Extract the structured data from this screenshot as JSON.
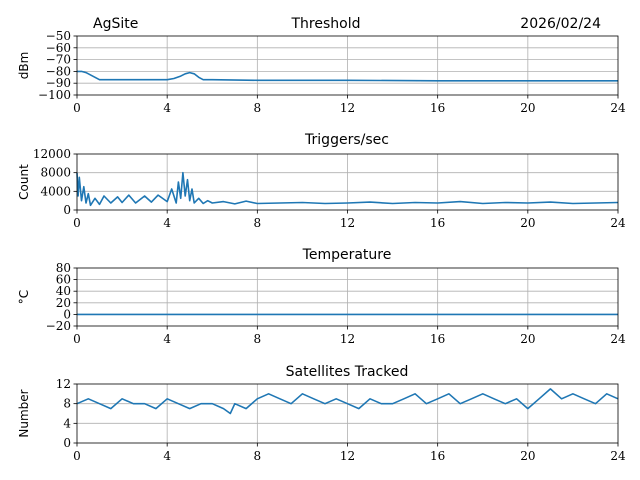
{
  "header": {
    "site": "AgSite",
    "date": "2026/02/24"
  },
  "colors": {
    "series": "#1f77b4",
    "grid": "#b0b0b0",
    "axis": "#000000"
  },
  "chart_data": [
    {
      "type": "line",
      "title": "Threshold",
      "xlabel": "",
      "ylabel": "dBm",
      "xlim": [
        0,
        24
      ],
      "ylim": [
        -100,
        -50
      ],
      "xticks": [
        0,
        4,
        8,
        12,
        16,
        20,
        24
      ],
      "yticks": [
        -100,
        -90,
        -80,
        -70,
        -60,
        -50
      ],
      "yticklabels": [
        "−100",
        "−90",
        "−80",
        "−70",
        "−60",
        "−50"
      ],
      "grid": true,
      "series": [
        {
          "name": "Threshold",
          "x": [
            0,
            0.2,
            0.4,
            0.6,
            0.8,
            1.0,
            1.3,
            2,
            3,
            4,
            4.3,
            4.6,
            4.8,
            5.0,
            5.2,
            5.4,
            5.6,
            6,
            8,
            12,
            16,
            20,
            24
          ],
          "y": [
            -80,
            -80,
            -81,
            -83,
            -85,
            -87,
            -87,
            -87,
            -87,
            -87,
            -86,
            -84,
            -82,
            -81,
            -82,
            -85,
            -87,
            -87,
            -87.5,
            -87.5,
            -88,
            -88,
            -88
          ]
        }
      ]
    },
    {
      "type": "line",
      "title": "Triggers/sec",
      "xlabel": "",
      "ylabel": "Count",
      "xlim": [
        0,
        24
      ],
      "ylim": [
        0,
        12000
      ],
      "xticks": [
        0,
        4,
        8,
        12,
        16,
        20,
        24
      ],
      "yticks": [
        0,
        4000,
        8000,
        12000
      ],
      "yticklabels": [
        "0",
        "4000",
        "8000",
        "12000"
      ],
      "grid": true,
      "series": [
        {
          "name": "Triggers",
          "x": [
            0,
            0.05,
            0.1,
            0.2,
            0.3,
            0.4,
            0.5,
            0.6,
            0.8,
            1.0,
            1.2,
            1.5,
            1.8,
            2.0,
            2.3,
            2.6,
            3.0,
            3.3,
            3.6,
            4.0,
            4.2,
            4.4,
            4.5,
            4.6,
            4.7,
            4.8,
            4.9,
            5.0,
            5.1,
            5.2,
            5.4,
            5.6,
            5.8,
            6.0,
            6.5,
            7.0,
            7.5,
            8.0,
            9,
            10,
            11,
            12,
            13,
            14,
            15,
            16,
            17,
            18,
            19,
            20,
            21,
            22,
            23,
            24
          ],
          "y": [
            8000,
            3000,
            7000,
            2000,
            5000,
            1500,
            3500,
            1000,
            2500,
            1200,
            3000,
            1500,
            2800,
            1600,
            3200,
            1500,
            3000,
            1700,
            3200,
            1800,
            4500,
            1500,
            6000,
            2500,
            8000,
            3000,
            6500,
            2000,
            4500,
            1500,
            2500,
            1400,
            2000,
            1500,
            1800,
            1300,
            1900,
            1400,
            1500,
            1600,
            1400,
            1500,
            1700,
            1400,
            1600,
            1500,
            1800,
            1400,
            1600,
            1500,
            1700,
            1400,
            1500,
            1600
          ]
        }
      ]
    },
    {
      "type": "line",
      "title": "Temperature",
      "xlabel": "",
      "ylabel": "°C",
      "xlim": [
        0,
        24
      ],
      "ylim": [
        -20,
        80
      ],
      "xticks": [
        0,
        4,
        8,
        12,
        16,
        20,
        24
      ],
      "yticks": [
        -20,
        0,
        20,
        40,
        60,
        80
      ],
      "yticklabels": [
        "−20",
        "0",
        "20",
        "40",
        "60",
        "80"
      ],
      "grid": true,
      "series": [
        {
          "name": "Temperature",
          "x": [
            0,
            24
          ],
          "y": [
            0,
            0
          ]
        }
      ]
    },
    {
      "type": "line",
      "title": "Satellites Tracked",
      "xlabel": "",
      "ylabel": "Number",
      "xlim": [
        0,
        24
      ],
      "ylim": [
        0,
        12
      ],
      "xticks": [
        0,
        4,
        8,
        12,
        16,
        20,
        24
      ],
      "yticks": [
        0,
        4,
        8,
        12
      ],
      "yticklabels": [
        "0",
        "4",
        "8",
        "12"
      ],
      "grid": true,
      "series": [
        {
          "name": "Satellites",
          "x": [
            0,
            0.5,
            1.0,
            1.5,
            2.0,
            2.5,
            3.0,
            3.5,
            4.0,
            4.5,
            5.0,
            5.5,
            6.0,
            6.5,
            6.8,
            7.0,
            7.5,
            8.0,
            8.5,
            9.0,
            9.5,
            10.0,
            10.5,
            11.0,
            11.5,
            12.0,
            12.5,
            13.0,
            13.5,
            14.0,
            14.5,
            15.0,
            15.5,
            16.0,
            16.5,
            17.0,
            17.5,
            18.0,
            18.5,
            19.0,
            19.5,
            20.0,
            20.5,
            21.0,
            21.5,
            22.0,
            22.5,
            23.0,
            23.5,
            24.0
          ],
          "y": [
            8,
            9,
            8,
            7,
            9,
            8,
            8,
            7,
            9,
            8,
            7,
            8,
            8,
            7,
            6,
            8,
            7,
            9,
            10,
            9,
            8,
            10,
            9,
            8,
            9,
            8,
            7,
            9,
            8,
            8,
            9,
            10,
            8,
            9,
            10,
            8,
            9,
            10,
            9,
            8,
            9,
            7,
            9,
            11,
            9,
            10,
            9,
            8,
            10,
            9
          ]
        }
      ]
    }
  ]
}
